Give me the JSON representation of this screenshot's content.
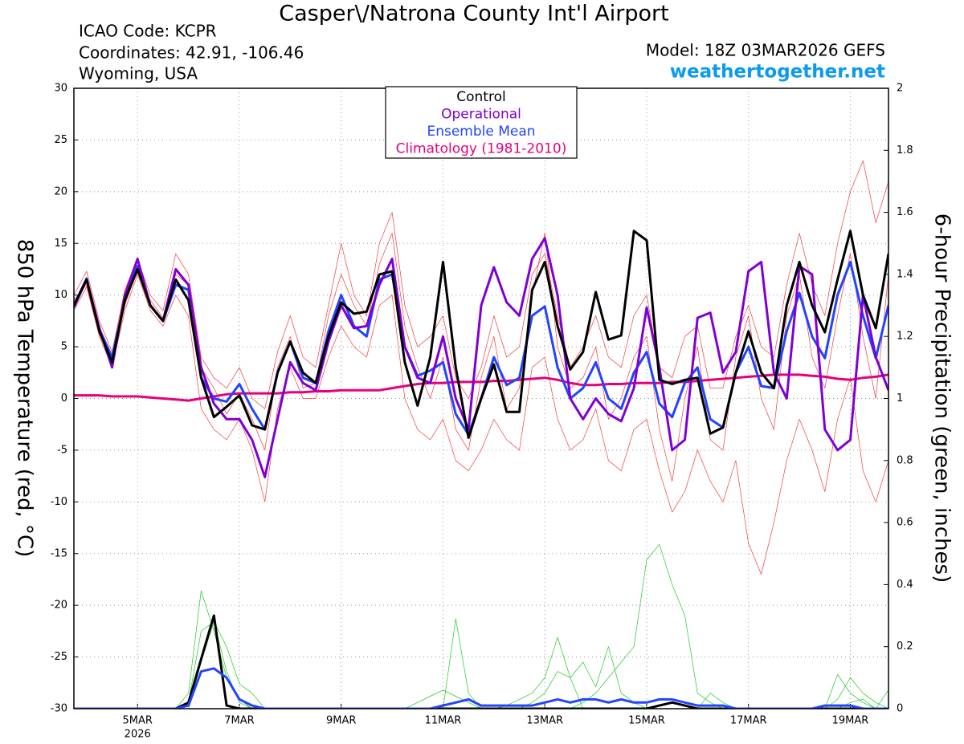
{
  "chart_data": {
    "type": "line",
    "title": "Casper\\/Natrona County Int'l Airport",
    "info": [
      "ICAO Code: KCPR",
      "Coordinates: 42.91, -106.46",
      "Wyoming, USA"
    ],
    "model": "Model: 18Z 03MAR2026 GEFS",
    "site": "weathertogether.net",
    "ylabel": "850 hPa Temperature (red, °C)",
    "y2label": "6-hour Precipitation (green, inches)",
    "year_label": "2026",
    "categories": [
      null,
      null,
      null,
      null,
      null,
      "5MAR",
      null,
      null,
      null,
      null,
      null,
      null,
      null,
      "7MAR",
      null,
      null,
      null,
      null,
      null,
      null,
      null,
      "9MAR",
      null,
      null,
      null,
      null,
      null,
      null,
      null,
      "11MAR",
      null,
      null,
      null,
      null,
      null,
      null,
      null,
      "13MAR",
      null,
      null,
      null,
      null,
      null,
      null,
      null,
      "15MAR",
      null,
      null,
      null,
      null,
      null,
      null,
      null,
      "17MAR",
      null,
      null,
      null,
      null,
      null,
      null,
      null,
      "19MAR",
      null,
      null,
      null
    ],
    "ylim": [
      -30,
      30
    ],
    "yticks": [
      -30,
      -25,
      -20,
      -15,
      -10,
      -5,
      0,
      5,
      10,
      15,
      20,
      25,
      30
    ],
    "y2lim": [
      0,
      2
    ],
    "y2ticks": [
      0,
      0.2,
      0.4,
      0.6,
      0.8,
      1,
      1.2,
      1.4,
      1.6,
      1.8,
      2
    ],
    "grid": true,
    "temp_members": [
      {
        "color": "#f03c3c",
        "values": [
          10,
          12.3,
          7.5,
          4.5,
          10.5,
          13.5,
          10,
          8.5,
          14,
          12,
          4,
          2,
          1,
          3,
          0,
          -1,
          4.5,
          8,
          4,
          3,
          9,
          15,
          10,
          8,
          15,
          18,
          9,
          5,
          6,
          8,
          2,
          0,
          3,
          8,
          4,
          5,
          12,
          14,
          8,
          3,
          5,
          8,
          4,
          3,
          8,
          10,
          3,
          2,
          6,
          7,
          1,
          1,
          6,
          9,
          5,
          4,
          11,
          16,
          11,
          8,
          15,
          20,
          23,
          17,
          21
        ]
      },
      {
        "color": "#f03c3c",
        "values": [
          8.5,
          10.8,
          6,
          3,
          8.5,
          12,
          8.5,
          7,
          10,
          8,
          -1,
          -3,
          -4,
          -2,
          -5,
          -10,
          -1,
          3,
          0,
          0,
          4,
          7,
          5,
          4,
          9,
          10,
          0,
          -3,
          -4,
          -2,
          -6,
          -7,
          -5,
          -2,
          -4,
          -5,
          3,
          4,
          -2,
          -5,
          -4,
          -1,
          -6,
          -7,
          -3,
          -2,
          -7,
          -11,
          -9,
          -5,
          -8,
          -10,
          -6,
          -14,
          -17,
          -12,
          -6,
          -2,
          -5,
          -9,
          -2,
          2,
          -7,
          -10,
          -6
        ]
      },
      {
        "color": "#f03c3c",
        "values": [
          9.5,
          11,
          6.2,
          4.2,
          9,
          12.5,
          9.5,
          7.8,
          12,
          11,
          3,
          1,
          -1.5,
          0.5,
          -2,
          -5,
          3,
          6,
          1,
          1.5,
          8,
          12,
          9,
          7,
          13,
          16,
          7,
          3,
          0,
          4,
          -3,
          -5,
          2,
          6,
          -1,
          1,
          10,
          16,
          5,
          1,
          2,
          5,
          -2,
          0,
          4,
          6,
          -3,
          -8,
          0,
          5,
          -4,
          -5,
          4,
          8,
          0,
          -3,
          8,
          12,
          4,
          1,
          8,
          14,
          6,
          0,
          12
        ]
      }
    ],
    "precip": [
      {
        "color": "#22c822",
        "axis": "y2",
        "values": [
          0,
          0,
          0,
          0,
          0,
          0,
          0,
          0,
          0,
          0.05,
          0.38,
          0.25,
          0.1,
          0.03,
          0,
          0,
          0,
          0,
          0,
          0,
          0,
          0,
          0,
          0,
          0,
          0,
          0,
          0,
          0,
          0,
          0.29,
          0.05,
          0,
          0,
          0.01,
          0.03,
          0.05,
          0.1,
          0.23,
          0.1,
          0,
          0,
          0,
          0,
          0,
          0,
          0,
          0,
          0,
          0,
          0,
          0,
          0,
          0,
          0,
          0,
          0,
          0,
          0,
          0,
          0.03,
          0.1,
          0.05,
          0.02,
          0
        ]
      },
      {
        "color": "#22c822",
        "axis": "y2",
        "values": [
          0,
          0,
          0,
          0,
          0,
          0,
          0,
          0,
          0,
          0,
          0.15,
          0.28,
          0.12,
          0.02,
          0,
          0,
          0,
          0,
          0,
          0,
          0,
          0,
          0,
          0,
          0,
          0,
          0,
          0,
          0,
          0,
          0,
          0,
          0,
          0,
          0,
          0,
          0,
          0,
          0,
          0,
          0.02,
          0.05,
          0.1,
          0.15,
          0.2,
          0.48,
          0.53,
          0.4,
          0.3,
          0.05,
          0.02,
          0,
          0,
          0,
          0,
          0,
          0,
          0,
          0,
          0,
          0,
          0.02,
          0.03,
          0,
          0.06
        ]
      },
      {
        "color": "#22c822",
        "axis": "y2",
        "values": [
          0,
          0,
          0,
          0,
          0,
          0,
          0,
          0,
          0,
          0.02,
          0.25,
          0.28,
          0.2,
          0.08,
          0.05,
          0,
          0,
          0,
          0,
          0,
          0,
          0,
          0,
          0,
          0,
          0,
          0,
          0.02,
          0.04,
          0.06,
          0.04,
          0.02,
          0,
          0,
          0,
          0,
          0.02,
          0.05,
          0.12,
          0.1,
          0.15,
          0.07,
          0.2,
          0.05,
          0.02,
          0,
          0,
          0,
          0,
          0,
          0.05,
          0.02,
          0,
          0,
          0,
          0,
          0,
          0,
          0,
          0,
          0.11,
          0.05,
          0.02,
          0,
          0
        ]
      },
      {
        "color": "#000000",
        "axis": "y2",
        "values": [
          0,
          0,
          0,
          0,
          0,
          0,
          0,
          0,
          0,
          0.02,
          0.16,
          0.3,
          0.01,
          0,
          0,
          0,
          0,
          0,
          0,
          0,
          0,
          0,
          0,
          0,
          0,
          0,
          0,
          0,
          0,
          0,
          0,
          0,
          0,
          0,
          0,
          0,
          0,
          0,
          0,
          0,
          0,
          0,
          0,
          0,
          0,
          0,
          0.01,
          0.02,
          0.01,
          0,
          0,
          0,
          0,
          0,
          0,
          0,
          0,
          0,
          0,
          0,
          0,
          0,
          0,
          0,
          0
        ]
      },
      {
        "color": "#2244ff",
        "axis": "y2",
        "values": [
          0,
          0,
          0,
          0,
          0,
          0,
          0,
          0,
          0,
          0.01,
          0.12,
          0.13,
          0.1,
          0.03,
          0.01,
          0,
          0,
          0,
          0,
          0,
          0,
          0,
          0,
          0,
          0,
          0,
          0,
          0,
          0,
          0.01,
          0.02,
          0.03,
          0.01,
          0.01,
          0.01,
          0.01,
          0.01,
          0.02,
          0.03,
          0.02,
          0.03,
          0.03,
          0.02,
          0.03,
          0.02,
          0.02,
          0.03,
          0.03,
          0.02,
          0.01,
          0.01,
          0.01,
          0,
          0,
          0,
          0,
          0,
          0,
          0,
          0.01,
          0.01,
          0.01,
          0,
          0,
          0
        ]
      }
    ],
    "series": [
      {
        "name": "Climatology (1981-2010)",
        "color": "#e6007e",
        "values": [
          0.3,
          0.3,
          0.3,
          0.2,
          0.2,
          0.2,
          0.1,
          0,
          -0.1,
          -0.2,
          0,
          0.2,
          0.4,
          0.5,
          0.5,
          0.5,
          0.5,
          0.6,
          0.6,
          0.7,
          0.7,
          0.8,
          0.8,
          0.8,
          0.8,
          1,
          1.2,
          1.4,
          1.5,
          1.5,
          1.6,
          1.6,
          1.6,
          1.7,
          1.7,
          1.8,
          1.9,
          2,
          1.8,
          1.5,
          1.3,
          1.3,
          1.4,
          1.4,
          1.5,
          1.5,
          1.5,
          1.6,
          1.6,
          1.7,
          1.8,
          1.9,
          2,
          2.1,
          2.2,
          2.3,
          2.3,
          2.3,
          2.2,
          2.1,
          1.9,
          1.8,
          2,
          2.1,
          2.3
        ]
      },
      {
        "name": "Ensemble Mean",
        "color": "#2244ff",
        "values": [
          9,
          11.6,
          6.7,
          4,
          9.5,
          12.8,
          9,
          7.5,
          11,
          10.5,
          2,
          0,
          -0.3,
          1.4,
          -1,
          -3,
          2.5,
          5.5,
          2,
          1.5,
          6.5,
          10,
          7,
          6,
          11.5,
          12,
          5,
          2.2,
          2.7,
          3.5,
          -1.5,
          -3.5,
          0,
          4,
          1.3,
          2,
          8,
          8.9,
          3,
          0,
          1,
          3.5,
          0,
          -1,
          2.5,
          4.5,
          -0.5,
          -1.8,
          1.5,
          3,
          -2,
          -2.8,
          2.5,
          5,
          1.2,
          1,
          6.5,
          10.2,
          6,
          3.9,
          10,
          13.2,
          8,
          3.9,
          9
        ]
      },
      {
        "name": "Operational",
        "color": "#7f00d4",
        "values": [
          8.8,
          11.5,
          6.8,
          3,
          10,
          13.5,
          9,
          7.5,
          12.5,
          11,
          3,
          -0.5,
          -2,
          -2,
          -4,
          -7.6,
          -2,
          3.5,
          1.5,
          0.8,
          5.5,
          9,
          6.8,
          7,
          11,
          13.5,
          5,
          2,
          1.5,
          6,
          0,
          -3,
          9,
          12.7,
          9.3,
          8,
          13.5,
          15.5,
          10,
          0,
          -2,
          0,
          -1.5,
          -2.2,
          1,
          8.8,
          3,
          -5,
          -4,
          7.8,
          8.3,
          2.5,
          4.5,
          12.3,
          13.2,
          2.5,
          0,
          12.8,
          12,
          -3,
          -5,
          -4,
          10,
          4,
          0.8
        ]
      },
      {
        "name": "Control",
        "color": "#000000",
        "values": [
          9,
          11.5,
          6.5,
          3.5,
          9.5,
          12.5,
          9,
          7.5,
          11.5,
          9.5,
          2,
          -1.8,
          -0.8,
          0.3,
          -2.6,
          -3,
          2.5,
          5.5,
          2.5,
          1.5,
          6,
          9.3,
          8.2,
          8.4,
          12,
          12.3,
          3.5,
          -0.7,
          4,
          13.2,
          3,
          -3.8,
          0,
          3.3,
          -1.3,
          -1.3,
          10.5,
          13.2,
          7,
          2.8,
          4.5,
          10.3,
          5.7,
          6.1,
          16.2,
          15.3,
          1.8,
          1.4,
          1.8,
          2,
          -3.4,
          -2.8,
          2.5,
          6.5,
          2.5,
          1,
          9,
          13.2,
          9,
          6.4,
          11.5,
          16.2,
          10,
          6.8,
          14
        ]
      }
    ]
  }
}
